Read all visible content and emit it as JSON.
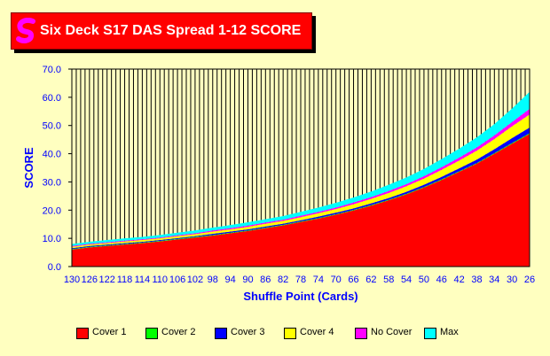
{
  "title": "Six Deck S17 DAS Spread 1-12 SCORE",
  "chart_data": {
    "type": "area",
    "stacked": true,
    "xlabel": "Shuffle Point (Cards)",
    "ylabel": "SCORE",
    "ylim": [
      0,
      70
    ],
    "yticks": [
      "0.0",
      "10.0",
      "20.0",
      "30.0",
      "40.0",
      "50.0",
      "60.0",
      "70.0"
    ],
    "x_tick_labels": [
      "130",
      "126",
      "122",
      "118",
      "114",
      "110",
      "106",
      "102",
      "98",
      "94",
      "90",
      "86",
      "82",
      "78",
      "74",
      "70",
      "66",
      "62",
      "58",
      "54",
      "50",
      "46",
      "42",
      "38",
      "34",
      "30",
      "26"
    ],
    "x": [
      130,
      126,
      122,
      118,
      114,
      110,
      106,
      102,
      98,
      94,
      90,
      86,
      82,
      78,
      74,
      70,
      66,
      62,
      58,
      54,
      50,
      46,
      42,
      38,
      34,
      30,
      26
    ],
    "grid": "vertical",
    "plot_background": "#ffffc0",
    "legend_position": "bottom",
    "series": [
      {
        "name": "Cover 1",
        "color": "#ff0000",
        "values": [
          6.0,
          6.8,
          7.3,
          7.8,
          8.3,
          8.9,
          9.6,
          10.3,
          11.0,
          11.8,
          12.6,
          13.6,
          14.6,
          15.8,
          17.0,
          18.4,
          19.9,
          21.6,
          23.5,
          25.6,
          28.0,
          30.7,
          33.6,
          36.5,
          40.0,
          43.5,
          47.0
        ]
      },
      {
        "name": "Cover 2",
        "color": "#00ff00",
        "values": [
          0.2,
          0.2,
          0.2,
          0.2,
          0.2,
          0.2,
          0.2,
          0.2,
          0.2,
          0.2,
          0.2,
          0.2,
          0.2,
          0.2,
          0.2,
          0.2,
          0.2,
          0.2,
          0.2,
          0.2,
          0.2,
          0.2,
          0.2,
          0.2,
          0.2,
          0.3,
          0.3
        ]
      },
      {
        "name": "Cover 3",
        "color": "#0000ff",
        "values": [
          0.3,
          0.3,
          0.3,
          0.3,
          0.3,
          0.3,
          0.3,
          0.3,
          0.4,
          0.4,
          0.4,
          0.4,
          0.4,
          0.4,
          0.5,
          0.5,
          0.5,
          0.6,
          0.6,
          0.7,
          0.8,
          0.9,
          1.0,
          1.2,
          1.4,
          1.7,
          2.0
        ]
      },
      {
        "name": "Cover 4",
        "color": "#ffff00",
        "values": [
          0.5,
          0.5,
          0.5,
          0.6,
          0.6,
          0.6,
          0.7,
          0.7,
          0.8,
          0.8,
          0.9,
          1.0,
          1.0,
          1.1,
          1.2,
          1.3,
          1.5,
          1.6,
          1.8,
          2.0,
          2.2,
          2.5,
          2.8,
          3.2,
          3.6,
          4.2,
          4.6
        ]
      },
      {
        "name": "No Cover",
        "color": "#ff00ff",
        "values": [
          0.3,
          0.3,
          0.3,
          0.3,
          0.3,
          0.3,
          0.3,
          0.3,
          0.4,
          0.4,
          0.4,
          0.4,
          0.4,
          0.5,
          0.5,
          0.5,
          0.6,
          0.6,
          0.7,
          0.7,
          0.8,
          0.9,
          1.0,
          1.1,
          1.3,
          1.5,
          2.0
        ]
      },
      {
        "name": "Max",
        "color": "#00ffff",
        "values": [
          0.7,
          0.7,
          0.8,
          0.8,
          0.8,
          0.9,
          0.9,
          1.0,
          1.0,
          1.1,
          1.2,
          1.2,
          1.3,
          1.4,
          1.5,
          1.7,
          1.8,
          2.0,
          2.2,
          2.4,
          2.6,
          2.9,
          3.2,
          3.6,
          4.0,
          4.8,
          6.0
        ]
      }
    ]
  },
  "colors": {
    "background": "#ffffc0",
    "title_box": "#ff0000",
    "axis_text": "#0000ff",
    "logo": "#ff00ff"
  }
}
